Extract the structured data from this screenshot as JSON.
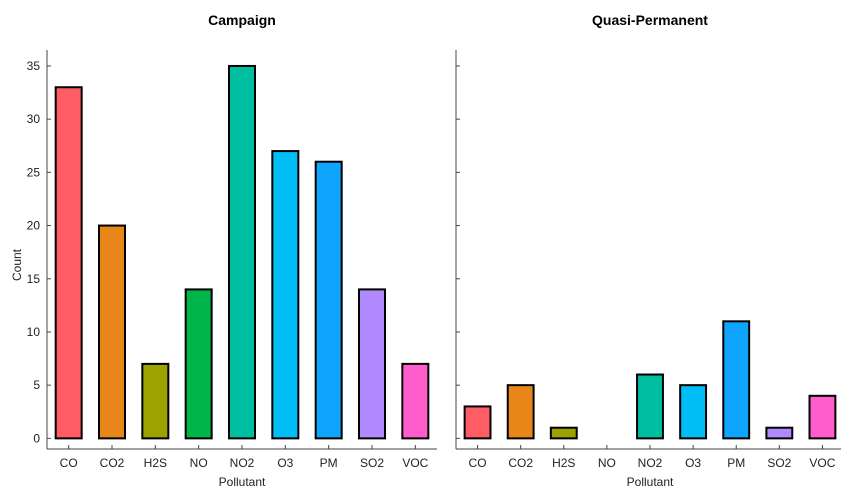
{
  "chart_data": [
    {
      "type": "bar",
      "title": "Campaign",
      "xlabel": "Pollutant",
      "ylabel": "Count",
      "ylim": [
        -1,
        36.5
      ],
      "yticks": [
        0,
        5,
        10,
        15,
        20,
        25,
        30,
        35
      ],
      "grid": false,
      "categories": [
        "CO",
        "CO2",
        "H2S",
        "NO",
        "NO2",
        "O3",
        "PM",
        "SO2",
        "VOC"
      ],
      "values": [
        33,
        20,
        7,
        14,
        35,
        27,
        26,
        14,
        7
      ]
    },
    {
      "type": "bar",
      "title": "Quasi-Permanent",
      "xlabel": "Pollutant",
      "ylabel": "",
      "ylim": [
        -1,
        36.5
      ],
      "yticks": [
        0,
        5,
        10,
        15,
        20,
        25,
        30,
        35
      ],
      "grid": false,
      "categories": [
        "CO",
        "CO2",
        "H2S",
        "NO",
        "NO2",
        "O3",
        "PM",
        "SO2",
        "VOC"
      ],
      "values": [
        3,
        5,
        1,
        0,
        6,
        5,
        11,
        1,
        4
      ]
    }
  ],
  "colors": {
    "CO": "#ff5c66",
    "CO2": "#e8861a",
    "H2S": "#9ca300",
    "NO": "#00b54a",
    "NO2": "#00bfa0",
    "O3": "#00bdf5",
    "PM": "#0fa5ff",
    "SO2": "#b189ff",
    "VOC": "#ff5ccc"
  }
}
